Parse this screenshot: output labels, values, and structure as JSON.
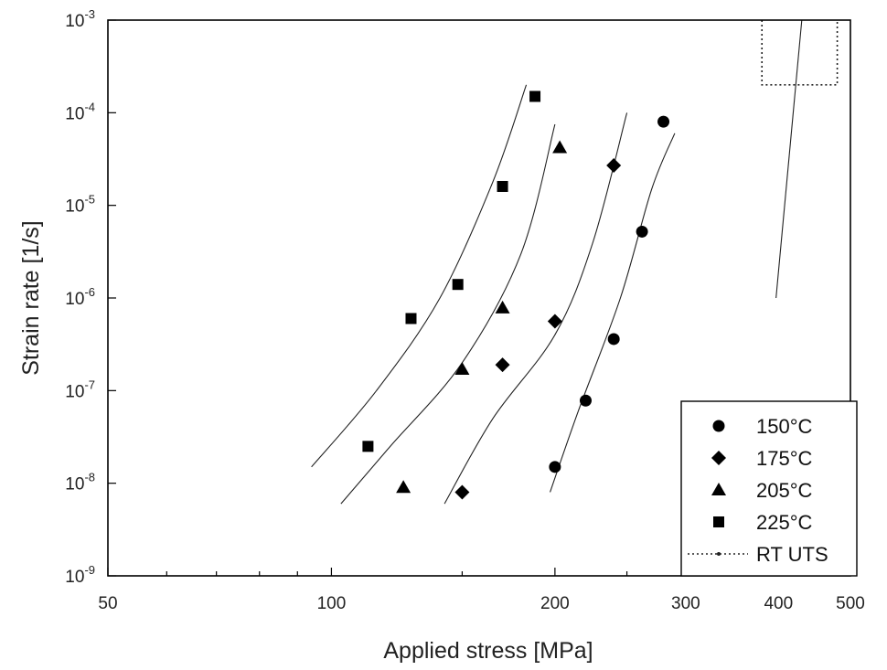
{
  "chart_data": {
    "type": "scatter",
    "xlabel": "Applied stress [MPa]",
    "ylabel": "Strain rate [1/s]",
    "xscale": "log",
    "yscale": "log",
    "xlim": [
      50,
      500
    ],
    "ylim": [
      1e-09,
      0.001
    ],
    "x_ticks": [
      {
        "value": 50,
        "label": "50"
      },
      {
        "value": 100,
        "label": "100"
      },
      {
        "value": 200,
        "label": "200"
      },
      {
        "value": 300,
        "label": "300"
      },
      {
        "value": 400,
        "label": "400"
      },
      {
        "value": 500,
        "label": "500"
      }
    ],
    "y_ticks": [
      {
        "value": 1e-09,
        "base": "10",
        "exp": "-9"
      },
      {
        "value": 1e-08,
        "base": "10",
        "exp": "-8"
      },
      {
        "value": 1e-07,
        "base": "10",
        "exp": "-7"
      },
      {
        "value": 1e-06,
        "base": "10",
        "exp": "-6"
      },
      {
        "value": 1e-05,
        "base": "10",
        "exp": "-5"
      },
      {
        "value": 0.0001,
        "base": "10",
        "exp": "-4"
      },
      {
        "value": 0.001,
        "base": "10",
        "exp": "-3"
      }
    ],
    "grid": false,
    "legend_position": "bottom-right",
    "series": [
      {
        "name": "150°C",
        "marker": "circle",
        "points": [
          [
            200,
            1.5e-08
          ],
          [
            220,
            7.8e-08
          ],
          [
            240,
            3.6e-07
          ],
          [
            262,
            5.2e-06
          ],
          [
            280,
            8e-05
          ]
        ],
        "fit": [
          [
            197,
            8e-09
          ],
          [
            215,
            6e-08
          ],
          [
            245,
            1e-06
          ],
          [
            270,
            1.5e-05
          ],
          [
            290,
            6e-05
          ]
        ]
      },
      {
        "name": "175°C",
        "marker": "diamond",
        "points": [
          [
            150,
            8e-09
          ],
          [
            170,
            1.9e-07
          ],
          [
            200,
            5.6e-07
          ],
          [
            240,
            2.7e-05
          ]
        ],
        "fit": [
          [
            142,
            6e-09
          ],
          [
            165,
            5e-08
          ],
          [
            200,
            4e-07
          ],
          [
            225,
            4e-06
          ],
          [
            250,
            0.0001
          ]
        ]
      },
      {
        "name": "205°C",
        "marker": "triangle",
        "points": [
          [
            125,
            9e-09
          ],
          [
            150,
            1.7e-07
          ],
          [
            170,
            7.8e-07
          ],
          [
            203,
            4.2e-05
          ]
        ],
        "fit": [
          [
            103,
            6e-09
          ],
          [
            120,
            2.5e-08
          ],
          [
            150,
            2e-07
          ],
          [
            180,
            3e-06
          ],
          [
            200,
            7.5e-05
          ]
        ]
      },
      {
        "name": "225°C",
        "marker": "square",
        "points": [
          [
            112,
            2.5e-08
          ],
          [
            128,
            6e-07
          ],
          [
            148,
            1.4e-06
          ],
          [
            170,
            1.6e-05
          ],
          [
            188,
            0.00015
          ]
        ],
        "fit": [
          [
            94,
            1.5e-08
          ],
          [
            115,
            1e-07
          ],
          [
            140,
            1e-06
          ],
          [
            165,
            1.8e-05
          ],
          [
            183,
            0.0002
          ]
        ]
      },
      {
        "name": "RT UTS",
        "marker": "dotted-line",
        "points": [],
        "fit": [
          [
            397,
            1e-06
          ],
          [
            430,
            0.001
          ]
        ],
        "limit_box": {
          "x": [
            380,
            480
          ],
          "y": [
            0.0002,
            0.001
          ]
        }
      }
    ]
  }
}
